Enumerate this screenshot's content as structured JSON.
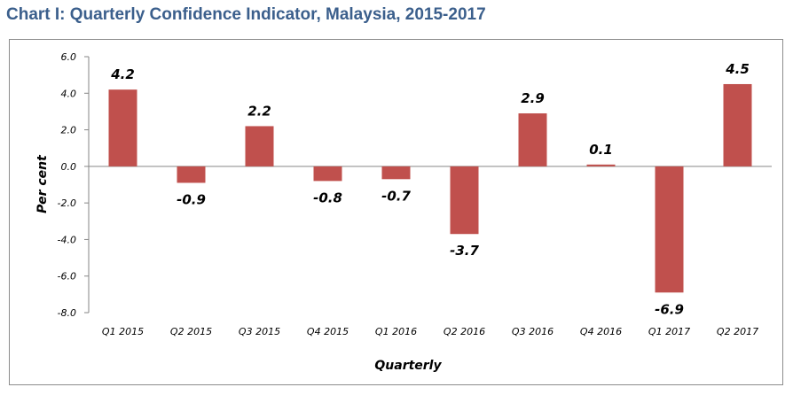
{
  "title": "Chart I: Quarterly Confidence Indicator, Malaysia, 2015-2017",
  "chart_data": {
    "type": "bar",
    "title": "Chart I: Quarterly Confidence Indicator, Malaysia, 2015-2017",
    "xlabel": "Quarterly",
    "ylabel": "Per cent",
    "ylim": [
      -8,
      6
    ],
    "yticks": [
      "6.0",
      "4.0",
      "2.0",
      "0.0",
      "-2.0",
      "-4.0",
      "-6.0",
      "-8.0"
    ],
    "ytick_values": [
      6,
      4,
      2,
      0,
      -2,
      -4,
      -6,
      -8
    ],
    "categories": [
      "Q1 2015",
      "Q2 2015",
      "Q3 2015",
      "Q4 2015",
      "Q1 2016",
      "Q2 2016",
      "Q3 2016",
      "Q4 2016",
      "Q1 2017",
      "Q2 2017"
    ],
    "values": [
      4.2,
      -0.9,
      2.2,
      -0.8,
      -0.7,
      -3.7,
      2.9,
      0.1,
      -6.9,
      4.5
    ],
    "labels": [
      "4.2",
      "-0.9",
      "2.2",
      "-0.8",
      "-0.7",
      "-3.7",
      "2.9",
      "0.1",
      "-6.9",
      "4.5"
    ],
    "bar_color": "#c0504d",
    "grid": false,
    "legend": "none"
  }
}
